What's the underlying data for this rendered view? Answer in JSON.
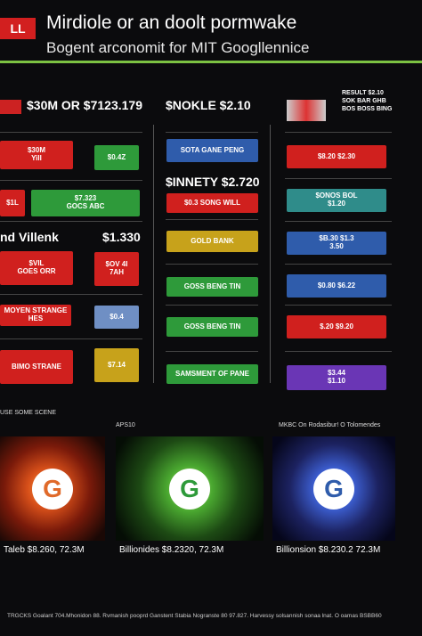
{
  "header": {
    "tab": "LL",
    "title": "Mirdiole or an doolt pormwake",
    "subtitle": "Bogent arconomit for MIT Googllennice"
  },
  "columns": [
    {
      "heading": "$30M OR $7123.179",
      "boxes": [
        "$30M\nYill",
        "$0.4Z",
        "$1L",
        "$7.323\nGOCS ABC",
        "$VIL\nGOES ORR",
        "$OV 4I\n7AH",
        "MOYEN STRANGE HES",
        "$0.4",
        "BIMO STRANE",
        "$7.14"
      ],
      "labels": [
        "nd Villenk",
        "$1.330"
      ]
    },
    {
      "heading": "$NOKLE $2.10",
      "boxes": [
        "SOTA GANE PENG",
        "$0.3 SONG WILL",
        "GOLD BANK",
        "GOSS BENG TIN",
        "GOSS BENG TIN",
        "SAMSMENT OF PANE"
      ],
      "labels": [
        "$INNETY $2.720"
      ]
    },
    {
      "heading": "RESULT $2.10\nSOK BAR GHB\nBOS BOSS BING",
      "boxes": [
        "$8.20    $2.30",
        "$ONOS BOL\n$1.20",
        "$B.30    $1.3\n3.50",
        "$0.80    $6.22",
        "$.20    $9.20",
        "$3.44\n$1.10"
      ],
      "labels": []
    }
  ],
  "panels": [
    {
      "label": "USE SOME SCENE",
      "logo": "G",
      "caption": "Taleb $8.260, 72.3M"
    },
    {
      "label": "APS10",
      "logo": "G",
      "caption": "Billionides $8.2320, 72.3M"
    },
    {
      "label": "MKBC On Rodasibur! O Tolomendes",
      "logo": "G",
      "caption": "Billionsion $8.230.2 72.3M"
    }
  ],
  "footer": "TRGCKS Goalant 704.Mhonidon 88. Rvmanish pooprd Ganstent Stabia Nogranste 80 97.827. Harvessy solsannish sonaa lnat. O oamas BSBB60"
}
